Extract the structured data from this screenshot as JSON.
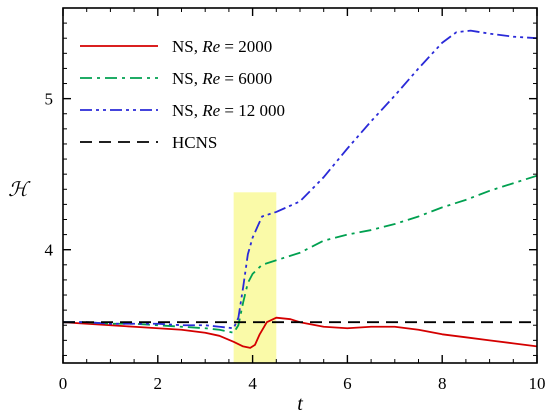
{
  "chart_data": {
    "type": "line",
    "title": "",
    "xlabel": "t",
    "ylabel": "ℋ",
    "xlim": [
      0,
      10
    ],
    "ylim": [
      3.25,
      5.6
    ],
    "xticks": [
      0,
      2,
      4,
      6,
      8,
      10
    ],
    "xtick_labels": [
      "0",
      "2",
      "4",
      "6",
      "8",
      "10"
    ],
    "yticks": [
      4,
      5
    ],
    "ytick_labels": [
      "4",
      "5"
    ],
    "grid": false,
    "legend_position": "top-left",
    "highlight": {
      "x_range": [
        3.6,
        4.5
      ],
      "y_range": [
        3.25,
        4.38
      ],
      "color": "#fafaa8"
    },
    "series": [
      {
        "name_prefix": "NS, ",
        "name_italic": "Re",
        "name_suffix": " = 2000",
        "color": "#d40000",
        "dash": "solid",
        "x": [
          0,
          0.5,
          1,
          1.5,
          2,
          2.5,
          3,
          3.3,
          3.6,
          3.8,
          3.95,
          4.05,
          4.15,
          4.3,
          4.5,
          4.8,
          5,
          5.5,
          6,
          6.5,
          7,
          7.5,
          8,
          8.5,
          9,
          9.5,
          10
        ],
        "y": [
          3.52,
          3.51,
          3.5,
          3.49,
          3.48,
          3.47,
          3.45,
          3.43,
          3.39,
          3.36,
          3.35,
          3.37,
          3.44,
          3.52,
          3.55,
          3.54,
          3.52,
          3.49,
          3.48,
          3.49,
          3.49,
          3.47,
          3.44,
          3.42,
          3.4,
          3.38,
          3.36
        ]
      },
      {
        "name_prefix": "NS, ",
        "name_italic": "Re",
        "name_suffix": " = 6000",
        "color": "#00a050",
        "dash": "dashdot",
        "x": [
          0,
          0.5,
          1,
          1.5,
          2,
          2.5,
          3,
          3.3,
          3.6,
          3.7,
          3.8,
          3.9,
          4,
          4.2,
          4.5,
          5,
          5.5,
          6,
          6.5,
          7,
          7.5,
          8,
          8.5,
          9,
          9.5,
          10
        ],
        "y": [
          3.52,
          3.52,
          3.51,
          3.51,
          3.5,
          3.49,
          3.48,
          3.47,
          3.45,
          3.5,
          3.65,
          3.78,
          3.84,
          3.9,
          3.93,
          3.98,
          4.06,
          4.1,
          4.13,
          4.17,
          4.22,
          4.28,
          4.33,
          4.39,
          4.44,
          4.49
        ]
      },
      {
        "name_prefix": "NS, ",
        "name_italic": "Re",
        "name_suffix": " = 12 000",
        "color": "#2a2ad8",
        "dash": "dashdotdot",
        "x": [
          0,
          0.5,
          1,
          1.5,
          2,
          2.5,
          3,
          3.3,
          3.6,
          3.7,
          3.8,
          3.9,
          4,
          4.1,
          4.2,
          4.5,
          5,
          5.5,
          6,
          6.5,
          7,
          7.5,
          8,
          8.3,
          8.6,
          9,
          9.5,
          10
        ],
        "y": [
          3.52,
          3.52,
          3.51,
          3.51,
          3.51,
          3.5,
          3.5,
          3.49,
          3.48,
          3.55,
          3.75,
          3.97,
          4.08,
          4.15,
          4.22,
          4.25,
          4.32,
          4.48,
          4.67,
          4.85,
          5.02,
          5.2,
          5.37,
          5.44,
          5.45,
          5.43,
          5.41,
          5.4
        ]
      },
      {
        "name_prefix": "HCNS",
        "name_italic": "",
        "name_suffix": "",
        "color": "#000000",
        "dash": "dashed",
        "x": [
          0,
          10
        ],
        "y": [
          3.52,
          3.52
        ]
      }
    ]
  }
}
